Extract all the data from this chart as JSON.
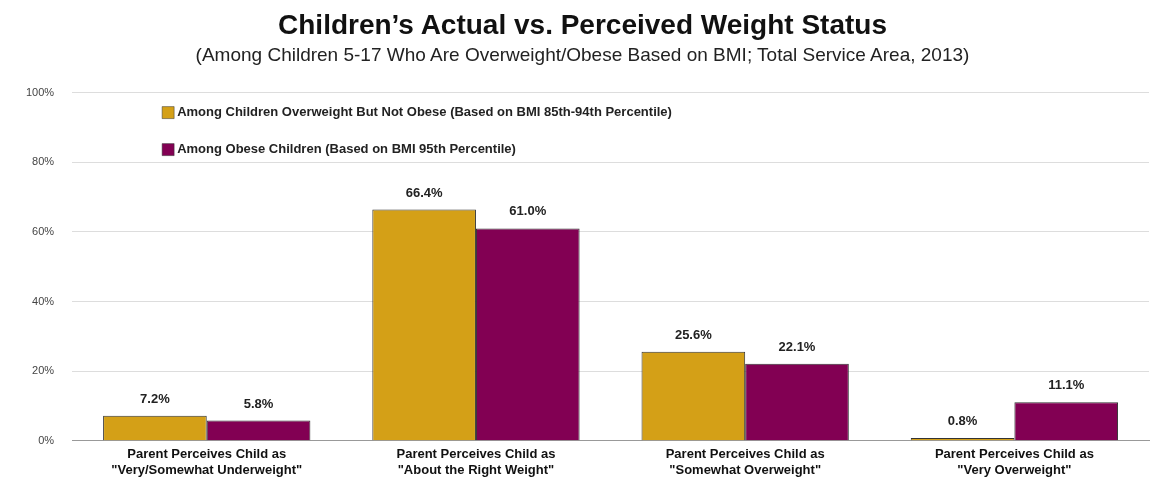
{
  "chart_data": {
    "type": "bar",
    "title": "Children’s Actual vs. Perceived Weight Status",
    "subtitle": "(Among Children 5-17 Who Are Overweight/Obese Based on BMI; Total Service Area, 2013)",
    "categories": [
      "Parent Perceives Child as\n\"Very/Somewhat Underweight\"",
      "Parent Perceives Child as\n\"About the Right Weight\"",
      "Parent Perceives Child as\n\"Somewhat Overweight\"",
      "Parent Perceives Child as\n\"Very Overweight\""
    ],
    "series": [
      {
        "name": "Among Children Overweight But Not Obese (Based on BMI 85th-94th Percentile)",
        "color": "#d4a017",
        "values": [
          7.2,
          66.4,
          25.6,
          0.8
        ],
        "value_labels": [
          "7.2%",
          "66.4%",
          "25.6%",
          "0.8%"
        ]
      },
      {
        "name": "Among Obese Children (Based on BMI 95th Percentile)",
        "color": "#820053",
        "values": [
          5.8,
          61.0,
          22.1,
          11.1
        ],
        "value_labels": [
          "5.8%",
          "61.0%",
          "22.1%",
          "11.1%"
        ]
      }
    ],
    "ylim": [
      0,
      100
    ],
    "yticks": [
      {
        "value": 0,
        "label": "0%"
      },
      {
        "value": 20,
        "label": "20%"
      },
      {
        "value": 40,
        "label": "40%"
      },
      {
        "value": 60,
        "label": "60%"
      },
      {
        "value": 80,
        "label": "80%"
      },
      {
        "value": 100,
        "label": "100%"
      }
    ],
    "grid": "y",
    "legend": "top left"
  }
}
